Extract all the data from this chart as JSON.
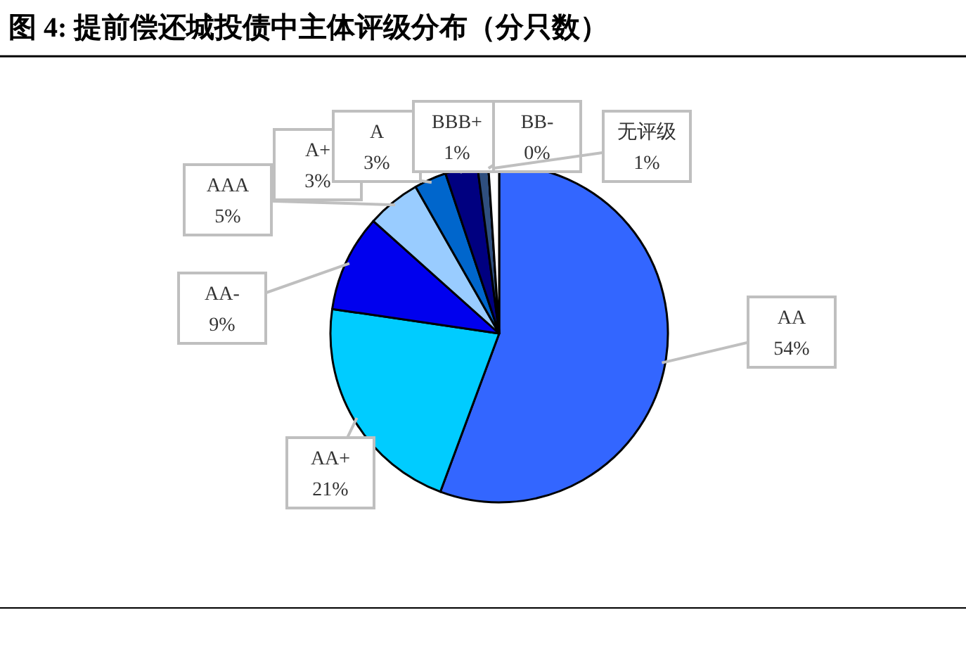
{
  "chart_data": {
    "type": "pie",
    "title": "图 4:  提前偿还城投债中主体评级分布（分只数）",
    "categories": [
      "AA",
      "AA+",
      "AA-",
      "AAA",
      "A+",
      "A",
      "BBB+",
      "BB-",
      "无评级"
    ],
    "values": [
      54,
      21,
      9,
      5,
      3,
      3,
      1,
      0,
      1
    ],
    "value_labels": [
      "54%",
      "21%",
      "9%",
      "5%",
      "3%",
      "3%",
      "1%",
      "0%",
      "1%"
    ],
    "colors": [
      "#3366ff",
      "#00ccff",
      "#0000ee",
      "#99ccff",
      "#0066cc",
      "#000080",
      "#2f4f7f",
      "#8b1a1a",
      "#ffffff"
    ],
    "data_labels": true
  }
}
